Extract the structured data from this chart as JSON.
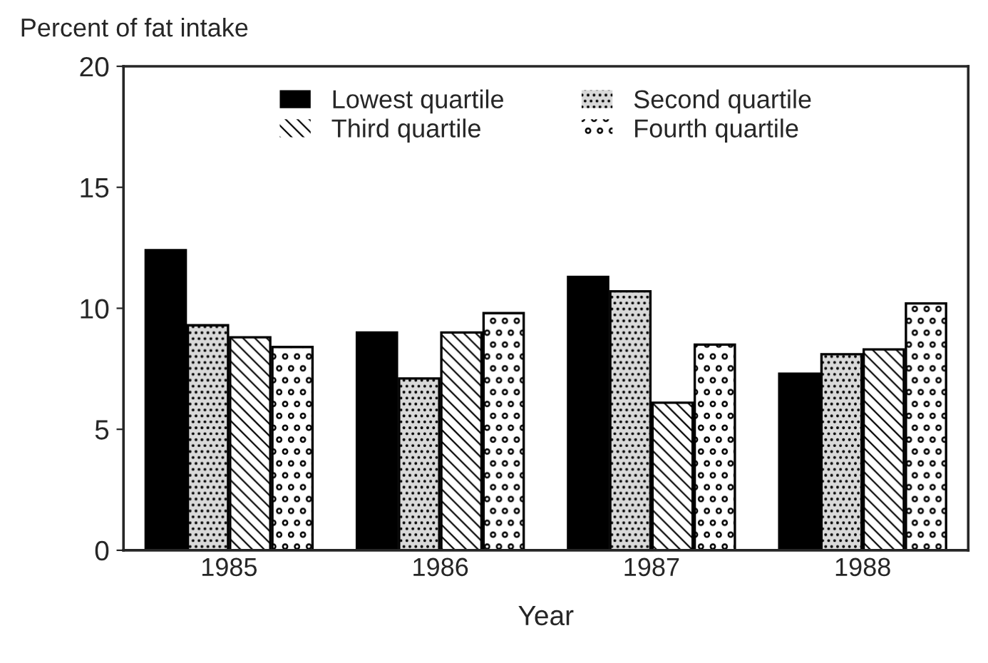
{
  "chart_data": {
    "type": "bar",
    "ylabel": "Percent of fat intake",
    "xlabel": "Year",
    "categories": [
      "1985",
      "1986",
      "1987",
      "1988"
    ],
    "series": [
      {
        "name": "Lowest quartile",
        "color": "#000000",
        "values": [
          12.4,
          9.0,
          11.3,
          7.3
        ]
      },
      {
        "name": "Second quartile",
        "color": "#d9d9d9",
        "values": [
          9.3,
          7.1,
          10.7,
          8.1
        ]
      },
      {
        "name": "Third quartile",
        "color": "#ffffff",
        "values": [
          8.8,
          9.0,
          6.1,
          8.3
        ]
      },
      {
        "name": "Fourth quartile",
        "color": "#ffffff",
        "values": [
          8.4,
          9.8,
          8.5,
          10.2
        ]
      }
    ],
    "ylim": [
      0,
      20
    ],
    "yticks": [
      0,
      5,
      10,
      15,
      20
    ],
    "grid": false,
    "legend": "top"
  }
}
